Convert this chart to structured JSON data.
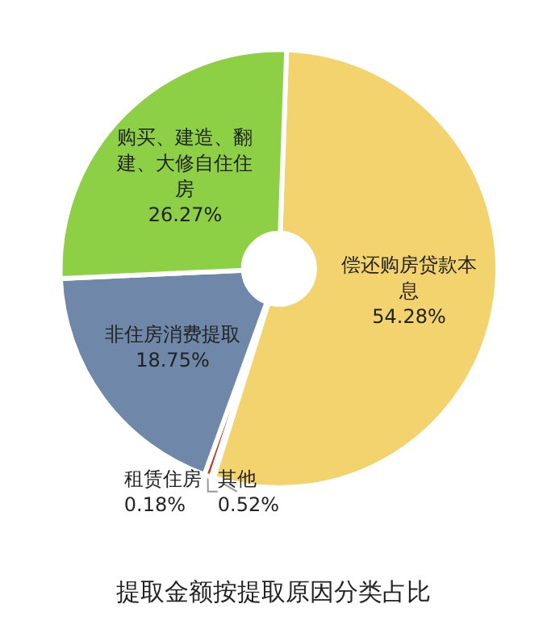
{
  "chart_data": {
    "type": "donut",
    "title": "提取金额按提取原因分类占比",
    "categories": [
      "偿还购房贷款本息",
      "租赁住房",
      "其他",
      "非住房消费提取",
      "购买、建造、翻建、大修自住住房"
    ],
    "values": [
      54.28,
      0.18,
      0.52,
      18.75,
      26.27
    ],
    "colors": [
      "#f3d36e",
      "#e8d9a0",
      "#c0392b",
      "#6f87a8",
      "#8dcf45"
    ],
    "value_labels": [
      "54.28%",
      "0.18%",
      "0.52%",
      "18.75%",
      "26.27%"
    ],
    "legend": false
  }
}
